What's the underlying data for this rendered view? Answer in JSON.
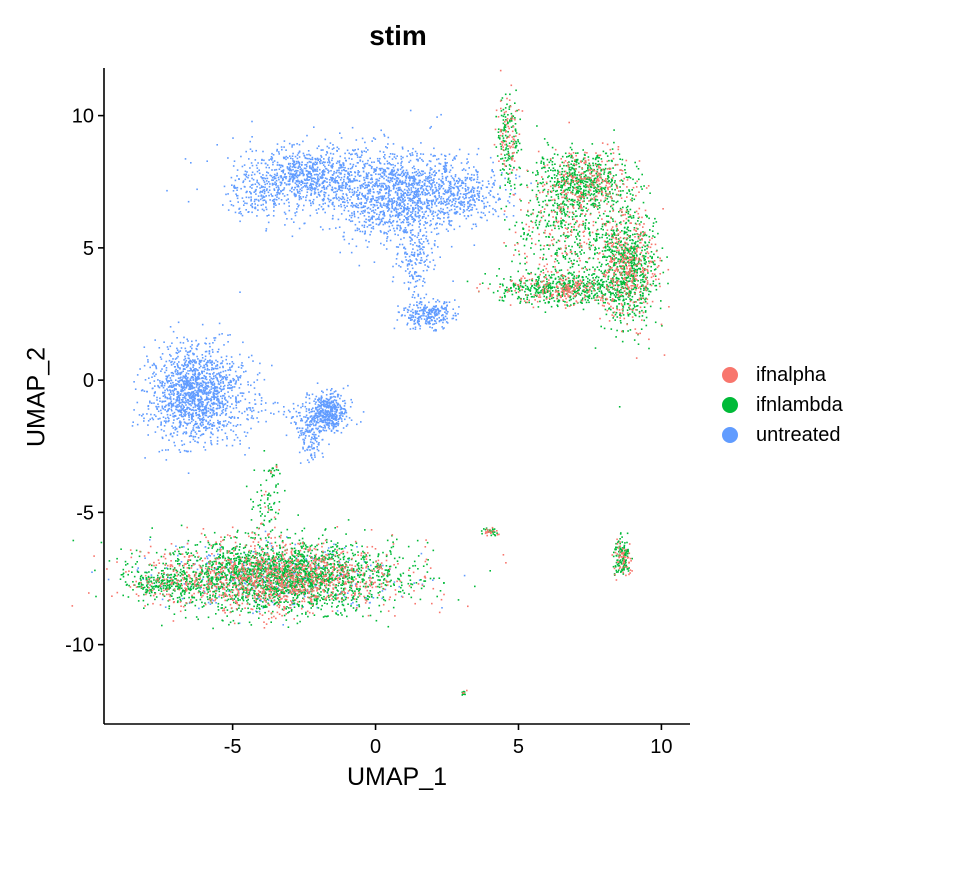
{
  "chart_data": {
    "type": "scatter",
    "title": "stim",
    "xlabel": "UMAP_1",
    "ylabel": "UMAP_2",
    "xlim": [
      -9.5,
      11
    ],
    "ylim": [
      -13,
      11.8
    ],
    "xticks": [
      -5,
      0,
      5,
      10
    ],
    "yticks": [
      -10,
      -5,
      0,
      5,
      10
    ],
    "legend_position": "right",
    "grid": false,
    "series": [
      {
        "name": "ifnalpha",
        "color": "#F8766D"
      },
      {
        "name": "ifnlambda",
        "color": "#00BA38"
      },
      {
        "name": "untreated",
        "color": "#619CFF"
      }
    ],
    "clusters": [
      {
        "label": "left-top-arc",
        "x": -2.5,
        "y": 7.7,
        "sx": 1.2,
        "sy": 0.6,
        "n": 900,
        "mix": [
          0,
          0,
          1
        ]
      },
      {
        "label": "upper-blue-main",
        "x": 0.8,
        "y": 7.0,
        "sx": 1.1,
        "sy": 0.9,
        "n": 1300,
        "mix": [
          0,
          0,
          1
        ]
      },
      {
        "label": "upper-blue-tail",
        "x": 3.0,
        "y": 7.1,
        "sx": 0.8,
        "sy": 0.5,
        "n": 350,
        "mix": [
          0,
          0,
          1
        ]
      },
      {
        "label": "blue-stem",
        "x": 1.4,
        "y": 4.5,
        "sx": 0.3,
        "sy": 0.8,
        "n": 150,
        "mix": [
          0,
          0,
          1
        ]
      },
      {
        "label": "blue-small",
        "x": 1.8,
        "y": 2.5,
        "sx": 0.5,
        "sy": 0.25,
        "n": 250,
        "mix": [
          0,
          0,
          1
        ]
      },
      {
        "label": "blue-arc",
        "x": -4.2,
        "y": 7.0,
        "sx": 0.5,
        "sy": 0.5,
        "n": 120,
        "mix": [
          0,
          0,
          1
        ]
      },
      {
        "label": "stim-spike",
        "x": 4.6,
        "y": 9.0,
        "sx": 0.2,
        "sy": 0.9,
        "n": 220,
        "mix": [
          0.3,
          0.7,
          0
        ]
      },
      {
        "label": "stim-upper-right",
        "x": 7.2,
        "y": 7.5,
        "sx": 0.8,
        "sy": 0.6,
        "n": 900,
        "mix": [
          0.3,
          0.7,
          0
        ]
      },
      {
        "label": "stim-right",
        "x": 8.8,
        "y": 4.3,
        "sx": 0.5,
        "sy": 1.1,
        "n": 1100,
        "mix": [
          0.3,
          0.7,
          0
        ]
      },
      {
        "label": "stim-band",
        "x": 6.5,
        "y": 3.5,
        "sx": 1.1,
        "sy": 0.3,
        "n": 700,
        "mix": [
          0.3,
          0.7,
          0
        ]
      },
      {
        "label": "stim-mid",
        "x": 6.5,
        "y": 5.5,
        "sx": 0.9,
        "sy": 0.8,
        "n": 400,
        "mix": [
          0.3,
          0.7,
          0
        ]
      },
      {
        "label": "blue-left-blob",
        "x": -6.3,
        "y": -0.5,
        "sx": 0.8,
        "sy": 0.9,
        "n": 1500,
        "mix": [
          0,
          0,
          1
        ]
      },
      {
        "label": "blue-mid-blob",
        "x": -1.7,
        "y": -1.2,
        "sx": 0.35,
        "sy": 0.35,
        "n": 450,
        "mix": [
          0,
          0,
          1
        ]
      },
      {
        "label": "blue-mid-tail",
        "x": -2.3,
        "y": -2.1,
        "sx": 0.25,
        "sy": 0.5,
        "n": 120,
        "mix": [
          0,
          0,
          1
        ]
      },
      {
        "label": "blue-connector",
        "x": -3.2,
        "y": -1.2,
        "sx": 0.8,
        "sy": 0.3,
        "n": 60,
        "mix": [
          0,
          0,
          1
        ]
      },
      {
        "label": "stim-lower-left",
        "x": -3.5,
        "y": -7.4,
        "sx": 2.1,
        "sy": 0.65,
        "n": 3800,
        "mix": [
          0.3,
          0.62,
          0.08
        ]
      },
      {
        "label": "stim-lower-left-tail",
        "x": -7.5,
        "y": -7.7,
        "sx": 0.6,
        "sy": 0.2,
        "n": 200,
        "mix": [
          0.2,
          0.8,
          0
        ]
      },
      {
        "label": "stim-lower-strand",
        "x": -3.8,
        "y": -4.7,
        "sx": 0.25,
        "sy": 0.8,
        "n": 80,
        "mix": [
          0.2,
          0.8,
          0
        ]
      },
      {
        "label": "stim-small-right",
        "x": 8.6,
        "y": -6.7,
        "sx": 0.15,
        "sy": 0.35,
        "n": 180,
        "mix": [
          0.35,
          0.65,
          0
        ]
      },
      {
        "label": "stim-tiny-mid",
        "x": 4.0,
        "y": -5.7,
        "sx": 0.2,
        "sy": 0.08,
        "n": 40,
        "mix": [
          0.4,
          0.6,
          0
        ]
      },
      {
        "label": "stim-tiny-bottom",
        "x": 3.05,
        "y": -11.8,
        "sx": 0.05,
        "sy": 0.05,
        "n": 12,
        "mix": [
          0.4,
          0.6,
          0
        ]
      },
      {
        "label": "stim-tiny-left",
        "x": -3.6,
        "y": -3.4,
        "sx": 0.08,
        "sy": 0.1,
        "n": 15,
        "mix": [
          0.4,
          0.6,
          0
        ]
      }
    ]
  }
}
